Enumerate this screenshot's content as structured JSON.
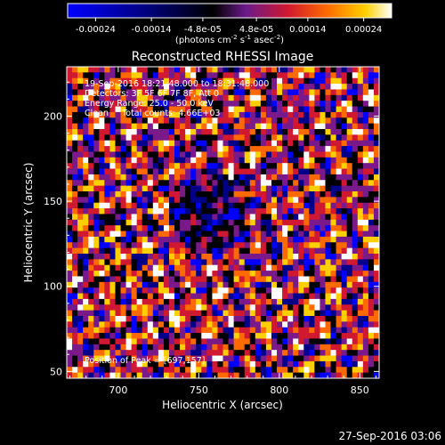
{
  "chart_data": {
    "type": "heatmap",
    "title": "Reconstructed RHESSI Image",
    "colorbar": {
      "ticks": [
        "-0.00024",
        "-0.00014",
        "-4.8e-05",
        "4.8e-05",
        "0.00014",
        "0.00024"
      ],
      "tick_values": [
        -0.00024,
        -0.00014,
        -4.8e-05,
        4.8e-05,
        0.00014,
        0.00024
      ],
      "range": [
        -0.00029,
        0.00029
      ],
      "units_prefix": "(photons cm",
      "units_sup1": "-2",
      "units_mid1": " s",
      "units_sup2": "-1",
      "units_mid2": " asec",
      "units_sup3": "-2",
      "units_suffix": ")"
    },
    "xlabel": "Heliocentric X (arcsec)",
    "ylabel": "Heliocentric Y (arcsec)",
    "xlim": [
      668,
      862
    ],
    "ylim": [
      46,
      229
    ],
    "xticks": [
      700,
      750,
      800,
      850
    ],
    "xtick_labels": [
      "700",
      "750",
      "800",
      "850"
    ],
    "yticks": [
      50,
      100,
      150,
      200
    ],
    "ytick_labels": [
      "50",
      "100",
      "150",
      "200"
    ],
    "annotations": {
      "line1": "19-Sep-2016 18:21:48.000 to 18:31:48.000",
      "line2": "Detectors: 3F 5F 6F 7F 8F, Att 0",
      "line3": "Energy Range: 25.0 - 50.0 keV",
      "line4": "Clean     Total counts: 4.66E+03",
      "peak": "Position of Peak = [697,157]"
    },
    "peak_position": [
      697,
      157
    ],
    "image_grid": {
      "nx": 58,
      "ny": 55
    },
    "grid": false
  },
  "footer": {
    "timestamp": "27-Sep-2016 03:06"
  },
  "colors": {
    "background": "#000000",
    "colormap": [
      "#0000ff",
      "#000088",
      "#000000",
      "#7a1a8a",
      "#d01830",
      "#ff6a00",
      "#ffd000",
      "#ffffff"
    ]
  }
}
